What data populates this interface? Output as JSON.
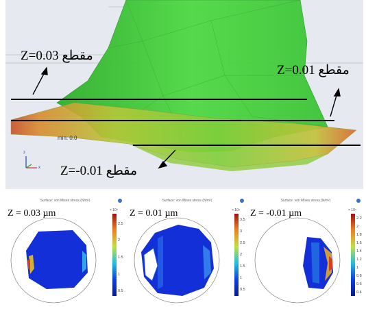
{
  "top_view": {
    "sections": [
      {
        "z_text": "Z=0.03",
        "word": "مقطع"
      },
      {
        "z_text": "Z=0.01",
        "word": "مقطع"
      },
      {
        "z_text": "Z=-0.01",
        "word": "مقطع"
      }
    ],
    "min_label": "min: 0.0",
    "axis_z": "z",
    "axis_x": "x"
  },
  "subplots": [
    {
      "title": "Surface: von Mises stress (N/m²)",
      "z_label": "Z = 0.03 µm",
      "scale_exp": "× 10⁹",
      "ticks": [
        "2.5",
        "2",
        "1.5",
        "1",
        "0.5"
      ]
    },
    {
      "title": "Surface: von Mises stress (N/m²)",
      "z_label": "Z = 0.01 µm",
      "scale_exp": "× 10⁹",
      "ticks": [
        "3.5",
        "3",
        "2.5",
        "2",
        "1.5",
        "1",
        "0.5"
      ]
    },
    {
      "title": "Surface: von Mises stress (N/m²)",
      "z_label": "Z = -0.01 µm",
      "scale_exp": "× 10⁹",
      "ticks": [
        "2.2",
        "2",
        "1.8",
        "1.6",
        "1.4",
        "1.2",
        "1",
        "0.8",
        "0.6",
        "0.4"
      ]
    }
  ],
  "colors": {
    "mesh_green": "#44d23c",
    "mesh_green_dark": "#2fa82b",
    "stress_blue": "#1330d8",
    "background": "#e6e9ef"
  }
}
